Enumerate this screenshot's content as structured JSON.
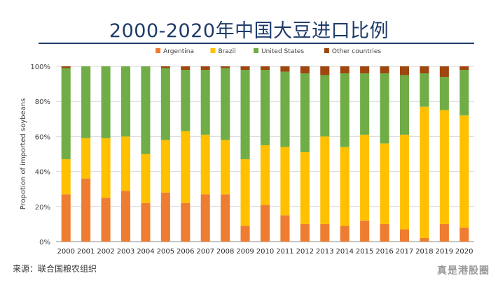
{
  "title": "2000-2020年中国大豆进口比例",
  "source": "来源：联合国粮农组织",
  "watermark": "真是港股圈",
  "chart_data": {
    "type": "bar",
    "stacked": true,
    "title": "2000-2020年中国大豆进口比例",
    "ylabel": "Propotion of imported soybeans",
    "xlabel": "",
    "ylim": [
      0,
      100
    ],
    "yticks": [
      0,
      20,
      40,
      60,
      80,
      100
    ],
    "ytick_labels": [
      "0%",
      "20%",
      "40%",
      "60%",
      "80%",
      "100%"
    ],
    "grid": true,
    "legend_position": "top",
    "categories": [
      "2000",
      "2001",
      "2002",
      "2003",
      "2004",
      "2005",
      "2006",
      "2007",
      "2008",
      "2009",
      "2010",
      "2011",
      "2012",
      "2013",
      "2014",
      "2015",
      "2016",
      "2017",
      "2018",
      "2019",
      "2020"
    ],
    "series": [
      {
        "name": "Argentina",
        "color": "#ee7d31",
        "values": [
          27,
          36,
          25,
          29,
          22,
          28,
          22,
          27,
          27,
          9,
          21,
          15,
          10,
          10,
          9,
          12,
          10,
          7,
          2,
          10,
          8
        ]
      },
      {
        "name": "Brazil",
        "color": "#ffc000",
        "values": [
          20,
          23,
          34,
          31,
          28,
          30,
          41,
          34,
          31,
          38,
          34,
          39,
          41,
          50,
          45,
          49,
          46,
          54,
          75,
          65,
          64
        ]
      },
      {
        "name": "United States",
        "color": "#71ad47",
        "values": [
          52,
          41,
          41,
          40,
          50,
          41,
          35,
          37,
          41,
          51,
          43,
          43,
          45,
          35,
          42,
          35,
          40,
          34,
          19,
          19,
          26
        ]
      },
      {
        "name": "Other countries",
        "color": "#9e470e",
        "values": [
          1,
          0,
          0,
          0,
          0,
          1,
          2,
          2,
          1,
          2,
          2,
          3,
          4,
          5,
          4,
          4,
          4,
          5,
          4,
          6,
          2
        ]
      }
    ]
  }
}
